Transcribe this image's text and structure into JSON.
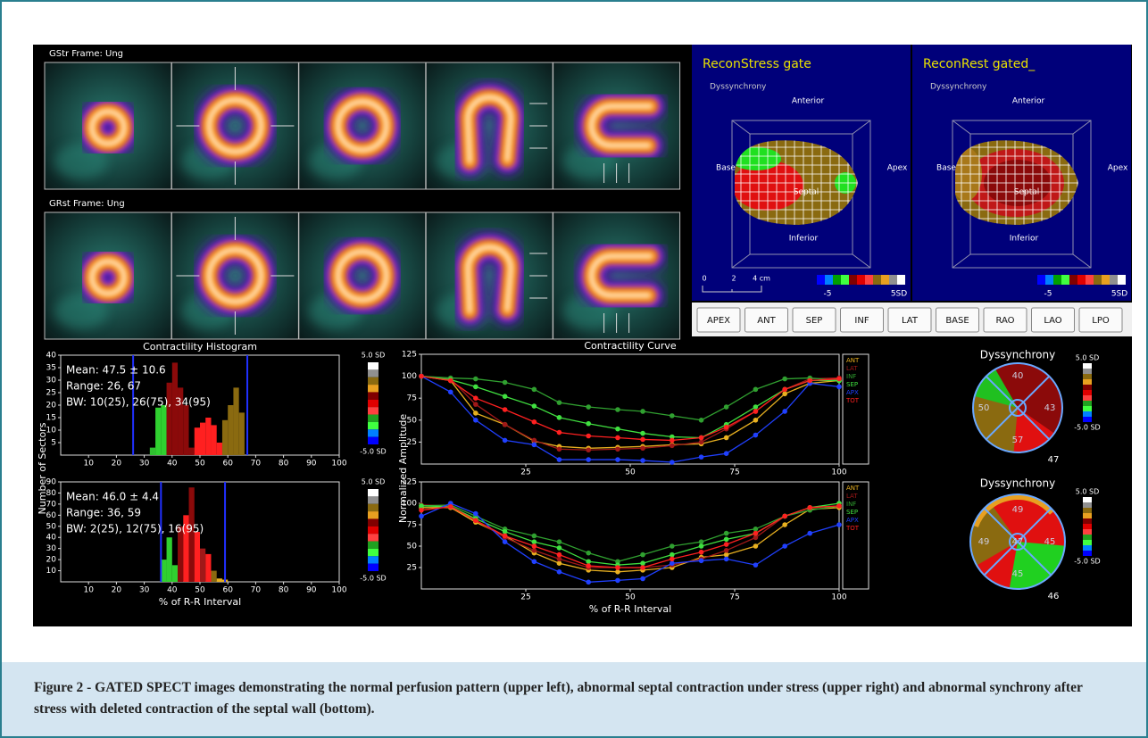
{
  "spect": {
    "rows": [
      {
        "label": "GStr   Frame: Ung"
      },
      {
        "label": "GRst   Frame: Ung"
      }
    ]
  },
  "recon": [
    {
      "title": "ReconStress gate",
      "subtitle": "Dyssynchrony",
      "anterior": "Anterior",
      "base": "Base",
      "septal": "Septal",
      "apex": "Apex",
      "inferior": "Inferior",
      "scale_min": "-5",
      "scale_max": "5SD",
      "ruler": [
        "0",
        "2",
        "4 cm"
      ]
    },
    {
      "title": "ReconRest gated_",
      "subtitle": "Dyssynchrony",
      "anterior": "Anterior",
      "base": "Base",
      "septal": "Septal",
      "apex": "Apex",
      "inferior": "Inferior",
      "scale_min": "-5",
      "scale_max": "5SD"
    }
  ],
  "buttons": [
    "APEX",
    "ANT",
    "SEP",
    "INF",
    "LAT",
    "BASE",
    "RAO",
    "LAO",
    "LPO"
  ],
  "polar": [
    {
      "title": "Dyssynchrony",
      "colorbar_max": "5.0 SD",
      "colorbar_min": "-5.0 SD",
      "regions": [
        "40",
        "50",
        "43",
        "57"
      ],
      "corner": "47"
    },
    {
      "title": "Dyssynchrony",
      "colorbar_max": "5.0 SD",
      "colorbar_min": "-5.0 SD",
      "regions": [
        "49",
        "49",
        "45",
        "45",
        "47"
      ],
      "corner": "46"
    }
  ],
  "chart_data": [
    {
      "type": "histogram",
      "title": "Contractility Histogram",
      "ylabel": "Number of Sectors",
      "bins": [
        32,
        34,
        36,
        38,
        40,
        42,
        44,
        46,
        48,
        50,
        52,
        54,
        56,
        58,
        60,
        62,
        64,
        66
      ],
      "values": [
        3,
        19,
        20,
        29,
        37,
        27,
        20,
        3,
        11,
        13,
        15,
        12,
        5,
        14,
        20,
        27,
        17
      ],
      "colors": [
        "#30c030",
        "#30d030",
        "#30d030",
        "#8b0a0a",
        "#8b0a0a",
        "#8b0a0a",
        "#8b0a0a",
        "#8b0a0a",
        "#ff2020",
        "#ff2020",
        "#ff2020",
        "#ff2020",
        "#ff2020",
        "#8a6a10",
        "#8a6a10",
        "#8a6a10",
        "#8a6a10"
      ],
      "markers": [
        26,
        67
      ],
      "marker_color": "#2030ff",
      "annotations": [
        "Mean: 47.5 ± 10.6",
        "Range: 26, 67",
        "BW: 10(25), 26(75), 34(95)"
      ],
      "colorbar_labels": [
        "5.0 SD",
        "-5.0 SD"
      ],
      "xlim": [
        0,
        100
      ],
      "xticks": [
        10,
        20,
        30,
        40,
        50,
        60,
        70,
        80,
        90,
        100
      ],
      "ylim": [
        0,
        40
      ],
      "yticks": [
        5,
        10,
        15,
        20,
        25,
        30,
        35,
        40
      ]
    },
    {
      "type": "histogram",
      "xlabel": "% of R-R Interval",
      "bins": [
        36,
        38,
        40,
        42,
        44,
        46,
        48,
        50,
        52,
        54,
        56,
        58,
        60
      ],
      "values": [
        20,
        40,
        15,
        50,
        60,
        85,
        45,
        30,
        25,
        10,
        3,
        2
      ],
      "colors": [
        "#30d030",
        "#30d030",
        "#30d030",
        "#8b0a0a",
        "#ff2020",
        "#8b0a0a",
        "#ff2020",
        "#a01818",
        "#ff2020",
        "#8a6a10",
        "#e8b020",
        "#e8b020"
      ],
      "markers": [
        36,
        59
      ],
      "marker_color": "#2030ff",
      "annotations": [
        "Mean: 46.0 ± 4.4",
        "Range: 36, 59",
        "BW: 2(25), 12(75), 16(95)"
      ],
      "colorbar_labels": [
        "5.0 SD",
        "-5.0 SD"
      ],
      "xlim": [
        0,
        100
      ],
      "xticks": [
        10,
        20,
        30,
        40,
        50,
        60,
        70,
        80,
        90,
        100
      ],
      "ylim": [
        0,
        90
      ],
      "yticks": [
        10,
        20,
        30,
        40,
        50,
        60,
        70,
        80,
        90
      ]
    },
    {
      "type": "line",
      "title": "Contractility Curve",
      "ylabel": "Normalized Amplitude",
      "x": [
        0,
        7,
        13,
        20,
        27,
        33,
        40,
        47,
        53,
        60,
        67,
        73,
        80,
        87,
        93,
        100
      ],
      "series": [
        {
          "name": "ANT",
          "color": "#e8b020",
          "values": [
            100,
            95,
            58,
            45,
            26,
            20,
            18,
            19,
            20,
            22,
            23,
            30,
            50,
            80,
            92,
            95
          ]
        },
        {
          "name": "LAT",
          "color": "#a01818",
          "values": [
            100,
            97,
            68,
            45,
            27,
            17,
            16,
            17,
            18,
            21,
            25,
            40,
            60,
            85,
            97,
            98
          ]
        },
        {
          "name": "INF",
          "color": "#30a030",
          "values": [
            100,
            98,
            97,
            93,
            85,
            70,
            65,
            62,
            60,
            55,
            50,
            65,
            85,
            97,
            98,
            95
          ]
        },
        {
          "name": "SEP",
          "color": "#40e040",
          "values": [
            100,
            96,
            88,
            77,
            66,
            53,
            46,
            40,
            35,
            31,
            30,
            45,
            65,
            85,
            95,
            95
          ]
        },
        {
          "name": "APX",
          "color": "#2040ff",
          "values": [
            100,
            82,
            50,
            27,
            22,
            5,
            5,
            5,
            4,
            2,
            8,
            12,
            33,
            60,
            92,
            88
          ]
        },
        {
          "name": "TOT",
          "color": "#ff2020",
          "values": [
            100,
            95,
            75,
            62,
            48,
            36,
            32,
            30,
            28,
            27,
            30,
            42,
            60,
            85,
            95,
            97
          ]
        }
      ],
      "xlim": [
        0,
        100
      ],
      "xticks": [
        25,
        50,
        75,
        100
      ],
      "ylim": [
        0,
        125
      ],
      "yticks": [
        25,
        50,
        75,
        100,
        125
      ]
    },
    {
      "type": "line",
      "xlabel": "% of R-R Interval",
      "x": [
        0,
        7,
        13,
        20,
        27,
        33,
        40,
        47,
        53,
        60,
        67,
        73,
        80,
        87,
        93,
        100
      ],
      "series": [
        {
          "name": "ANT",
          "color": "#e8b020",
          "values": [
            95,
            95,
            78,
            62,
            42,
            30,
            22,
            20,
            22,
            25,
            37,
            40,
            50,
            75,
            93,
            95
          ]
        },
        {
          "name": "LAT",
          "color": "#a01818",
          "values": [
            98,
            97,
            80,
            60,
            45,
            35,
            25,
            25,
            25,
            28,
            35,
            45,
            60,
            85,
            95,
            97
          ]
        },
        {
          "name": "INF",
          "color": "#30a030",
          "values": [
            97,
            98,
            85,
            70,
            62,
            55,
            42,
            32,
            40,
            50,
            55,
            65,
            70,
            85,
            92,
            97
          ]
        },
        {
          "name": "SEP",
          "color": "#40e040",
          "values": [
            97,
            96,
            82,
            67,
            55,
            48,
            32,
            28,
            30,
            40,
            50,
            58,
            65,
            85,
            95,
            100
          ]
        },
        {
          "name": "APX",
          "color": "#2040ff",
          "values": [
            85,
            100,
            88,
            55,
            32,
            20,
            8,
            10,
            12,
            30,
            33,
            35,
            28,
            50,
            65,
            75
          ]
        },
        {
          "name": "TOT",
          "color": "#ff2020",
          "values": [
            92,
            96,
            80,
            62,
            50,
            40,
            27,
            25,
            25,
            35,
            43,
            52,
            65,
            85,
            95,
            97
          ]
        }
      ],
      "xlim": [
        0,
        100
      ],
      "xticks": [
        25,
        50,
        75,
        100
      ],
      "ylim": [
        0,
        125
      ],
      "yticks": [
        25,
        50,
        75,
        100,
        125
      ]
    }
  ],
  "caption": "Figure 2 - GATED SPECT images demonstrating the normal perfusion pattern (upper left), abnormal septal contraction under stress (upper right) and abnormal synchrony after stress with deleted contraction of the septal wall (bottom)."
}
